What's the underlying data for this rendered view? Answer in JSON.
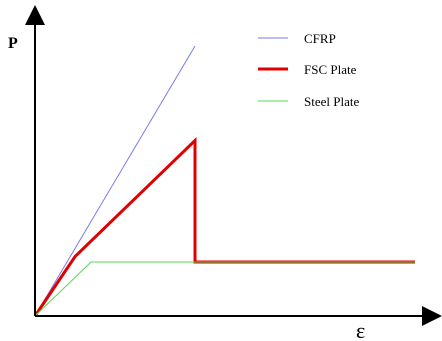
{
  "chart_data": {
    "type": "line",
    "title": "",
    "xlabel": "ε",
    "ylabel": "P",
    "xlim": [
      0,
      100
    ],
    "ylim": [
      0,
      100
    ],
    "ticks": "none",
    "grid": false,
    "legend_position": "top-right",
    "series": [
      {
        "name": "CFRP",
        "color": "#7b7be8",
        "points": [
          [
            0,
            0
          ],
          [
            40,
            100
          ]
        ]
      },
      {
        "name": "FSC Plate",
        "color": "#e00000",
        "points": [
          [
            0,
            0
          ],
          [
            10,
            22
          ],
          [
            40,
            65
          ],
          [
            40,
            20
          ],
          [
            95,
            20
          ]
        ]
      },
      {
        "name": "Steel Plate",
        "color": "#55d955",
        "points": [
          [
            0,
            0
          ],
          [
            14,
            20
          ],
          [
            95,
            20
          ]
        ]
      }
    ]
  }
}
